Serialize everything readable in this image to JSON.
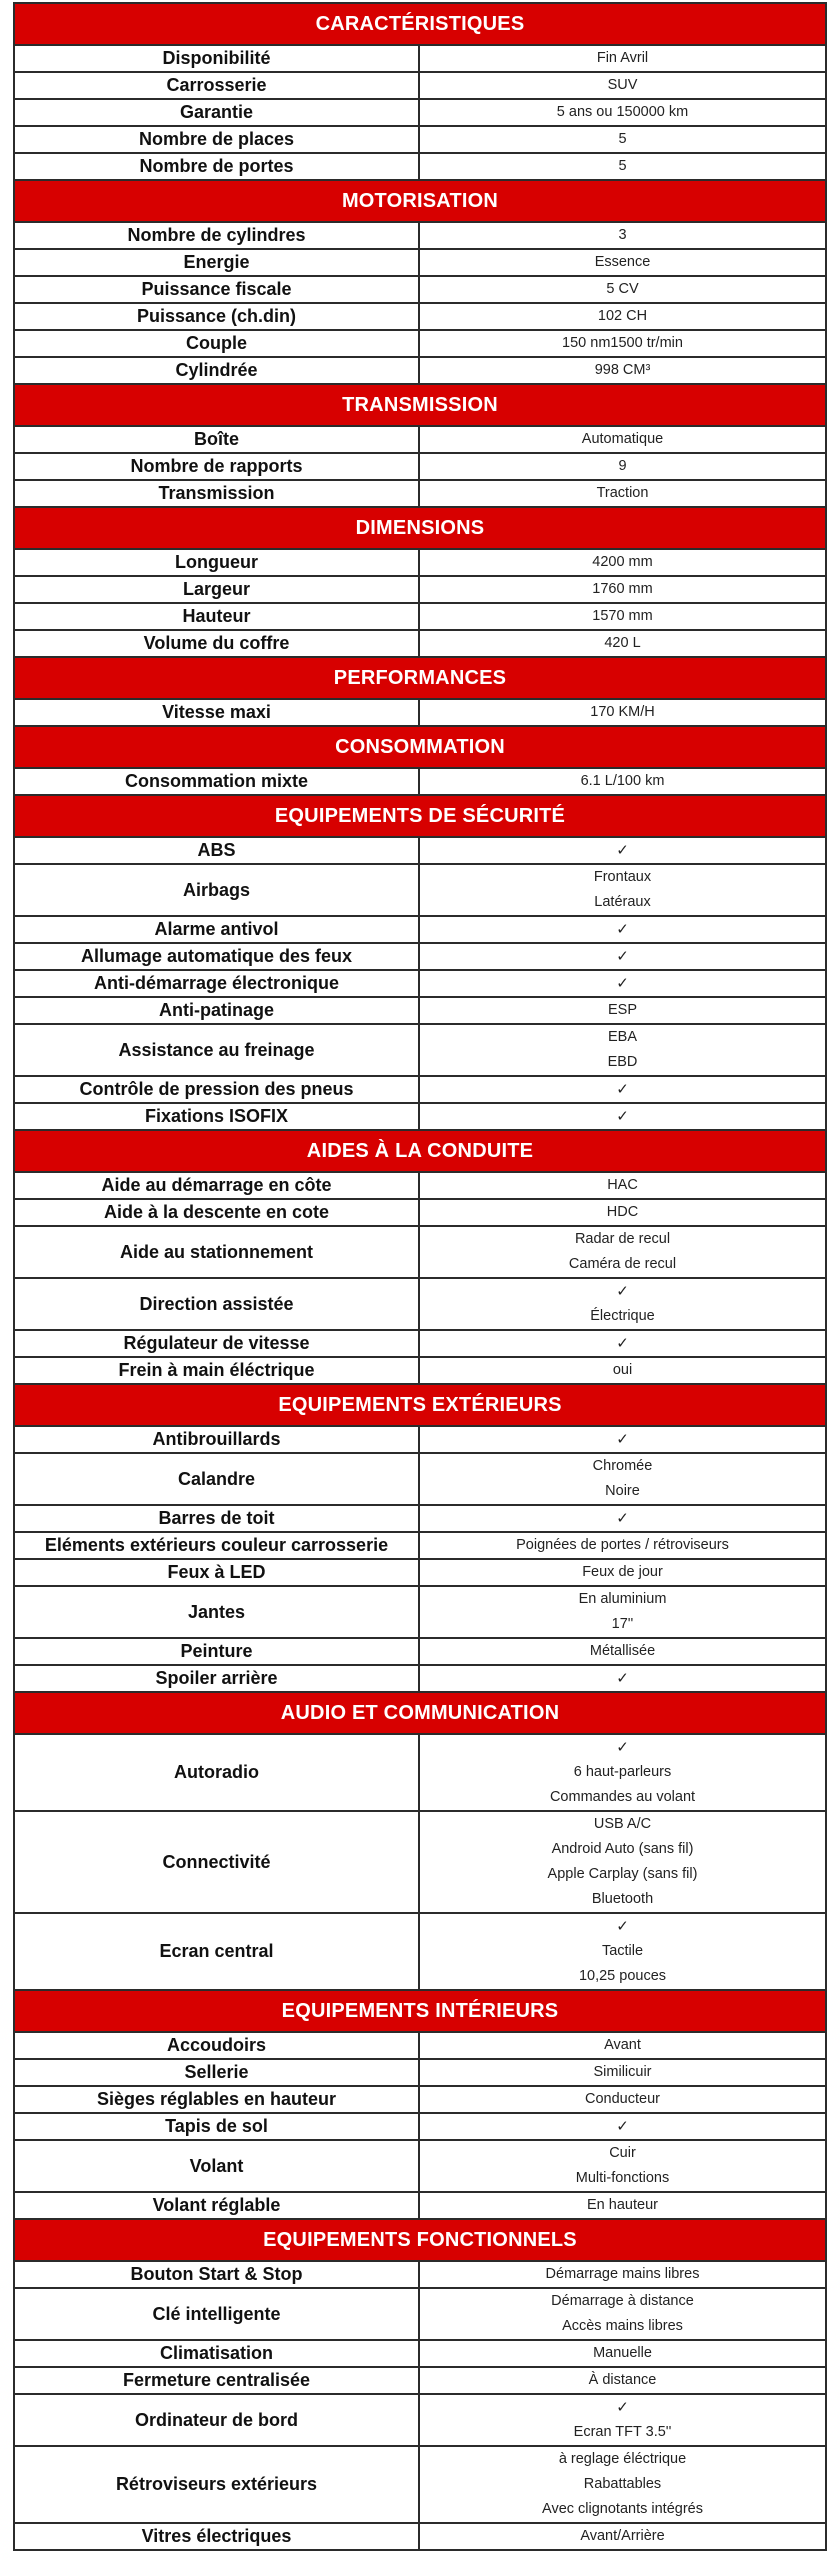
{
  "colors": {
    "header_background": "#d70000",
    "header_text": "#ffffff",
    "border": "#2b2b2b",
    "label_text": "#111111",
    "value_text": "#222222"
  },
  "icons": {
    "check_icon": "✓"
  },
  "sections": [
    {
      "header": "CARACTÉRISTIQUES",
      "rows": [
        {
          "label": "Disponibilité",
          "values": [
            "Fin Avril"
          ]
        },
        {
          "label": "Carrosserie",
          "values": [
            "SUV"
          ]
        },
        {
          "label": "Garantie",
          "values": [
            "5 ans ou 150000 km"
          ]
        },
        {
          "label": "Nombre de places",
          "values": [
            "5"
          ]
        },
        {
          "label": "Nombre de portes",
          "values": [
            "5"
          ]
        }
      ]
    },
    {
      "header": "MOTORISATION",
      "rows": [
        {
          "label": "Nombre de cylindres",
          "values": [
            "3"
          ]
        },
        {
          "label": "Energie",
          "values": [
            "Essence"
          ]
        },
        {
          "label": "Puissance fiscale",
          "values": [
            "5 CV"
          ]
        },
        {
          "label": "Puissance (ch.din)",
          "values": [
            "102 CH"
          ]
        },
        {
          "label": "Couple",
          "values": [
            "150 nm1500 tr/min"
          ]
        },
        {
          "label": "Cylindrée",
          "values": [
            "998 CM³"
          ]
        }
      ]
    },
    {
      "header": "TRANSMISSION",
      "rows": [
        {
          "label": "Boîte",
          "values": [
            "Automatique"
          ]
        },
        {
          "label": "Nombre de rapports",
          "values": [
            "9"
          ]
        },
        {
          "label": "Transmission",
          "values": [
            "Traction"
          ]
        }
      ]
    },
    {
      "header": "DIMENSIONS",
      "rows": [
        {
          "label": "Longueur",
          "values": [
            "4200 mm"
          ]
        },
        {
          "label": "Largeur",
          "values": [
            "1760 mm"
          ]
        },
        {
          "label": "Hauteur",
          "values": [
            "1570 mm"
          ]
        },
        {
          "label": "Volume du coffre",
          "values": [
            "420 L"
          ]
        }
      ]
    },
    {
      "header": "PERFORMANCES",
      "rows": [
        {
          "label": "Vitesse maxi",
          "values": [
            "170 KM/H"
          ]
        }
      ]
    },
    {
      "header": "CONSOMMATION",
      "rows": [
        {
          "label": "Consommation mixte",
          "values": [
            "6.1 L/100 km"
          ]
        }
      ]
    },
    {
      "header": "EQUIPEMENTS DE SÉCURITÉ",
      "rows": [
        {
          "label": "ABS",
          "values": [
            "✓"
          ]
        },
        {
          "label": "Airbags",
          "values": [
            "Frontaux",
            "Latéraux"
          ]
        },
        {
          "label": "Alarme antivol",
          "values": [
            "✓"
          ]
        },
        {
          "label": "Allumage automatique des feux",
          "values": [
            "✓"
          ]
        },
        {
          "label": "Anti-démarrage électronique",
          "values": [
            "✓"
          ]
        },
        {
          "label": "Anti-patinage",
          "values": [
            "ESP"
          ]
        },
        {
          "label": "Assistance au freinage",
          "values": [
            "EBA",
            "EBD"
          ]
        },
        {
          "label": "Contrôle de pression des pneus",
          "values": [
            "✓"
          ]
        },
        {
          "label": "Fixations ISOFIX",
          "values": [
            "✓"
          ]
        }
      ]
    },
    {
      "header": "AIDES À LA CONDUITE",
      "rows": [
        {
          "label": "Aide au démarrage en côte",
          "values": [
            "HAC"
          ]
        },
        {
          "label": "Aide à la descente en cote",
          "values": [
            "HDC"
          ]
        },
        {
          "label": "Aide au stationnement",
          "values": [
            "Radar de recul",
            "Caméra de recul"
          ]
        },
        {
          "label": "Direction assistée",
          "values": [
            "✓",
            "Électrique"
          ]
        },
        {
          "label": "Régulateur de vitesse",
          "values": [
            "✓"
          ]
        },
        {
          "label": "Frein à main éléctrique",
          "values": [
            "oui"
          ]
        }
      ]
    },
    {
      "header": "EQUIPEMENTS EXTÉRIEURS",
      "rows": [
        {
          "label": "Antibrouillards",
          "values": [
            "✓"
          ]
        },
        {
          "label": "Calandre",
          "values": [
            "Chromée",
            "Noire"
          ]
        },
        {
          "label": "Barres de toit",
          "values": [
            "✓"
          ]
        },
        {
          "label": "Eléments extérieurs couleur carrosserie",
          "values": [
            "Poignées de portes / rétroviseurs"
          ]
        },
        {
          "label": "Feux à LED",
          "values": [
            "Feux de jour"
          ]
        },
        {
          "label": "Jantes",
          "values": [
            "En aluminium",
            "17''"
          ]
        },
        {
          "label": "Peinture",
          "values": [
            "Métallisée"
          ]
        },
        {
          "label": "Spoiler arrière",
          "values": [
            "✓"
          ]
        }
      ]
    },
    {
      "header": "AUDIO ET COMMUNICATION",
      "rows": [
        {
          "label": "Autoradio",
          "values": [
            "✓",
            "6 haut-parleurs",
            "Commandes au volant"
          ]
        },
        {
          "label": "Connectivité",
          "values": [
            "USB A/C",
            "Android Auto (sans fil)",
            "Apple Carplay (sans fil)",
            "Bluetooth"
          ]
        },
        {
          "label": "Ecran central",
          "values": [
            "✓",
            "Tactile",
            "10,25 pouces"
          ]
        }
      ]
    },
    {
      "header": "EQUIPEMENTS INTÉRIEURS",
      "rows": [
        {
          "label": "Accoudoirs",
          "values": [
            "Avant"
          ]
        },
        {
          "label": "Sellerie",
          "values": [
            "Similicuir"
          ]
        },
        {
          "label": "Sièges réglables en hauteur",
          "values": [
            "Conducteur"
          ]
        },
        {
          "label": "Tapis de sol",
          "values": [
            "✓"
          ]
        },
        {
          "label": "Volant",
          "values": [
            "Cuir",
            "Multi-fonctions"
          ]
        },
        {
          "label": "Volant réglable",
          "values": [
            "En hauteur"
          ]
        }
      ]
    },
    {
      "header": "EQUIPEMENTS FONCTIONNELS",
      "rows": [
        {
          "label": "Bouton Start & Stop",
          "values": [
            "Démarrage mains libres"
          ]
        },
        {
          "label": "Clé intelligente",
          "values": [
            "Démarrage à distance",
            "Accès mains libres"
          ]
        },
        {
          "label": "Climatisation",
          "values": [
            "Manuelle"
          ]
        },
        {
          "label": "Fermeture centralisée",
          "values": [
            "À distance"
          ]
        },
        {
          "label": "Ordinateur de bord",
          "values": [
            "✓",
            "Ecran TFT 3.5''"
          ]
        },
        {
          "label": "Rétroviseurs extérieurs",
          "values": [
            "à reglage éléctrique",
            "Rabattables",
            "Avec clignotants intégrés"
          ]
        },
        {
          "label": "Vitres électriques",
          "values": [
            "Avant/Arrière"
          ]
        }
      ]
    }
  ]
}
